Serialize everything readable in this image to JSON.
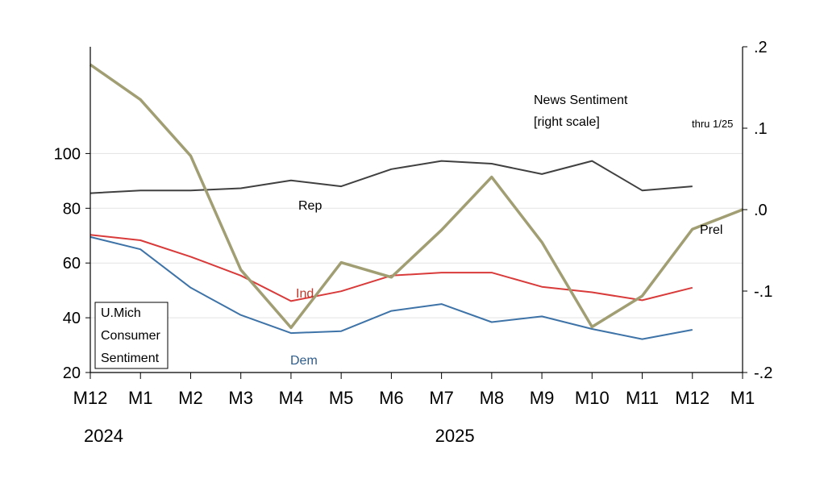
{
  "chart_data": {
    "type": "line",
    "title": "",
    "categories": [
      "M12",
      "M1",
      "M2",
      "M3",
      "M4",
      "M5",
      "M6",
      "M7",
      "M8",
      "M9",
      "M10",
      "M11",
      "M12",
      "M1"
    ],
    "years": [
      {
        "label": "2024",
        "category_index": 0
      },
      {
        "label": "2025",
        "category_index": 7
      }
    ],
    "left_axis": {
      "ticks": [
        "20",
        "40",
        "60",
        "80",
        "100"
      ],
      "tick_values": [
        20,
        40,
        60,
        80,
        100
      ],
      "ylim": [
        20,
        139
      ]
    },
    "right_axis": {
      "ticks": [
        ".2",
        ".1",
        ".0",
        "-.1",
        "-.2"
      ],
      "tick_values": [
        0.2,
        0.1,
        0.0,
        -0.1,
        -0.2
      ],
      "ylim": [
        -0.2,
        0.2
      ]
    },
    "series": [
      {
        "name": "Rep",
        "axis": "left",
        "color": "#404040",
        "values": [
          85.5,
          86.5,
          86.5,
          87.3,
          90.2,
          88,
          94.3,
          97.3,
          96.3,
          92.5,
          97.3,
          86.5,
          88,
          null
        ]
      },
      {
        "name": "Ind",
        "axis": "left",
        "color": "#d93a3a",
        "values": [
          70.3,
          68.3,
          62.3,
          55.4,
          46.1,
          49.7,
          55.4,
          56.5,
          56.5,
          51.3,
          49.3,
          46.4,
          51,
          null
        ]
      },
      {
        "name": "Dem",
        "axis": "left",
        "color": "#3e73a8",
        "values": [
          69.5,
          65,
          51,
          41,
          34.4,
          35.1,
          42.5,
          45,
          38.4,
          40.5,
          35.9,
          32.2,
          35.6,
          null
        ]
      },
      {
        "name": "News Sentiment",
        "axis": "right",
        "color": "#a09e72",
        "values": [
          0.178,
          0.135,
          0.066,
          -0.074,
          -0.145,
          -0.065,
          -0.083,
          -0.025,
          0.04,
          -0.04,
          -0.144,
          -0.106,
          -0.024,
          0.0
        ]
      }
    ],
    "annotations": {
      "rep": "Rep",
      "ind": "Ind",
      "dem": "Dem",
      "prel": "Prel",
      "news_line1": "News Sentiment",
      "news_line2": "[right scale]",
      "thru": "thru 1/25",
      "box": [
        "U.Mich",
        "Consumer",
        "Sentiment"
      ]
    },
    "colors": {
      "rep": "#404040",
      "ind": "#d93a3a",
      "dem": "#3e73a8",
      "news": "#a09e72",
      "grid": "#e3e3e3",
      "axis": "#000000"
    }
  }
}
